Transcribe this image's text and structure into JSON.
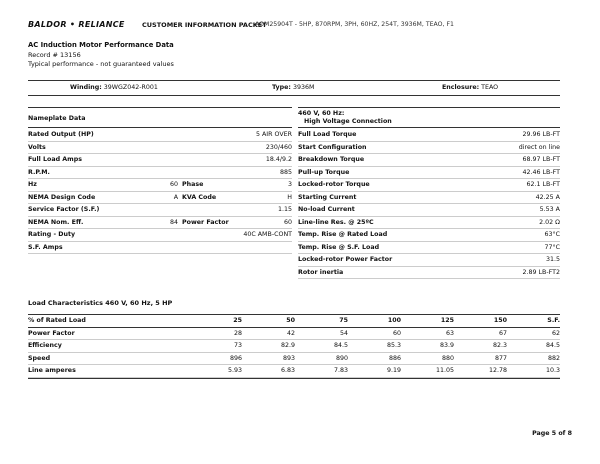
{
  "header": {
    "logo": "BALDOR • RELIANCE",
    "packet": "CUSTOMER INFORMATION PACKET",
    "model": "AOM25904T - 5HP, 870RPM, 3PH, 60HZ, 254T, 3936M, TEAO, F1"
  },
  "title": {
    "heading": "AC Induction Motor Performance Data",
    "record": "Record # 13156",
    "note": "Typical performance - not guaranteed values"
  },
  "info": [
    {
      "label": "Winding:",
      "value": "39WGZ042-R001"
    },
    {
      "label": "Type:",
      "value": "3936M"
    },
    {
      "label": "Enclosure:",
      "value": "TEAO"
    }
  ],
  "nameplate": {
    "heading": "Nameplate Data",
    "rows": [
      [
        "Rated Output (HP)",
        "5 AIR OVER"
      ],
      [
        "Volts",
        "230/460"
      ],
      [
        "Full Load Amps",
        "18.4/9.2"
      ],
      [
        "R.P.M.",
        "885"
      ],
      [
        "Hz",
        "60",
        "Phase",
        "3"
      ],
      [
        "NEMA Design Code",
        "A",
        "KVA Code",
        "H"
      ],
      [
        "Service Factor (S.F.)",
        "1.15"
      ],
      [
        "NEMA Nom. Eff.",
        "84",
        "Power Factor",
        "60"
      ],
      [
        "Rating - Duty",
        "40C AMB-CONT"
      ],
      [
        "S.F. Amps"
      ]
    ]
  },
  "connection": {
    "heading": [
      "460 V, 60 Hz:",
      "High Voltage Connection"
    ],
    "rows": [
      [
        "Full Load Torque",
        "29.96 LB-FT"
      ],
      [
        "Start Configuration",
        "direct on line"
      ],
      [
        "Breakdown Torque",
        "68.97 LB-FT"
      ],
      [
        "Pull-up Torque",
        "42.46 LB-FT"
      ],
      [
        "Locked-rotor Torque",
        "62.1 LB-FT"
      ],
      [
        "Starting Current",
        "42.25 A"
      ],
      [
        "No-load Current",
        "5.53 A"
      ],
      [
        "Line-line Res. @ 25ºC",
        "2.02 Ω"
      ],
      [
        "Temp. Rise @ Rated Load",
        "63°C"
      ],
      [
        "Temp. Rise @ S.F. Load",
        "77°C"
      ],
      [
        "Locked-rotor Power Factor",
        "31.5"
      ],
      [
        "Rotor inertia",
        "2.89 LB-FT2"
      ]
    ]
  },
  "load": {
    "title": "Load Characteristics 460 V, 60 Hz, 5 HP",
    "header": [
      "% of Rated Load",
      "25",
      "50",
      "75",
      "100",
      "125",
      "150",
      "S.F."
    ],
    "rows": [
      [
        "Power Factor",
        "28",
        "42",
        "54",
        "60",
        "63",
        "67",
        "62"
      ],
      [
        "Efficiency",
        "73",
        "82.9",
        "84.5",
        "85.3",
        "83.9",
        "82.3",
        "84.5"
      ],
      [
        "Speed",
        "896",
        "893",
        "890",
        "886",
        "880",
        "877",
        "882"
      ],
      [
        "Line amperes",
        "5.93",
        "6.83",
        "7.83",
        "9.19",
        "11.05",
        "12.78",
        "10.3"
      ]
    ]
  },
  "footer": {
    "page": "Page 5 of 8"
  }
}
